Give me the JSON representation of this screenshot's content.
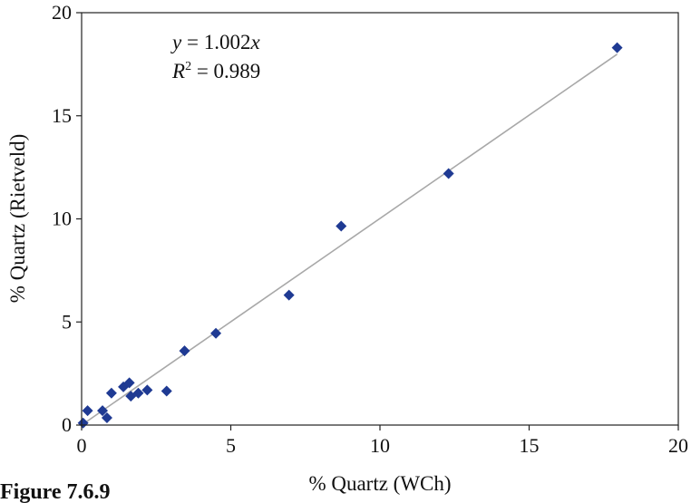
{
  "figure_caption": "Figure 7.6.9",
  "chart_data": {
    "type": "scatter",
    "xlabel": "% Quartz (WCh)",
    "ylabel": "% Quartz (Rietveld)",
    "xlim": [
      0,
      20
    ],
    "ylim": [
      0,
      20
    ],
    "x_ticks": [
      0,
      5,
      10,
      15,
      20
    ],
    "y_ticks": [
      0,
      5,
      10,
      15,
      20
    ],
    "grid": false,
    "legend": "none",
    "marker": "diamond",
    "marker_color": "#1f3a93",
    "line_color": "#a8a8a8",
    "points": [
      {
        "x": 0.05,
        "y": 0.1
      },
      {
        "x": 0.2,
        "y": 0.7
      },
      {
        "x": 0.7,
        "y": 0.7
      },
      {
        "x": 0.85,
        "y": 0.35
      },
      {
        "x": 1.0,
        "y": 1.55
      },
      {
        "x": 1.4,
        "y": 1.85
      },
      {
        "x": 1.6,
        "y": 2.05
      },
      {
        "x": 1.65,
        "y": 1.4
      },
      {
        "x": 1.9,
        "y": 1.55
      },
      {
        "x": 2.2,
        "y": 1.7
      },
      {
        "x": 2.85,
        "y": 1.65
      },
      {
        "x": 3.45,
        "y": 3.6
      },
      {
        "x": 4.5,
        "y": 4.45
      },
      {
        "x": 6.95,
        "y": 6.3
      },
      {
        "x": 8.7,
        "y": 9.65
      },
      {
        "x": 12.3,
        "y": 12.2
      },
      {
        "x": 17.95,
        "y": 18.3
      }
    ],
    "trendline": {
      "slope": 1.002,
      "x_range": [
        0,
        17.95
      ]
    },
    "annotations": {
      "equation_var_y": "y",
      "equation_rest": " = 1.002",
      "equation_var_x": "x",
      "r_squared_var": "R",
      "r_squared_sup": "2",
      "r_squared_rest": " = 0.989"
    }
  }
}
